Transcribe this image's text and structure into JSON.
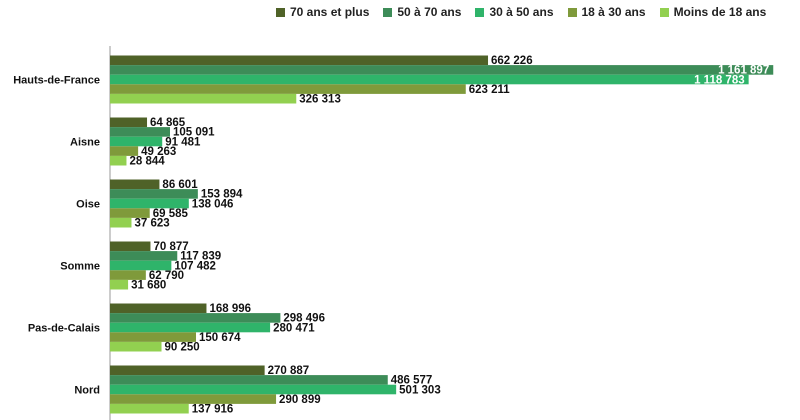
{
  "chart_data": {
    "type": "bar",
    "orientation": "horizontal",
    "categories": [
      "Hauts-de-France",
      "Aisne",
      "Oise",
      "Somme",
      "Pas-de-Calais",
      "Nord"
    ],
    "series": [
      {
        "name": "70 ans et plus",
        "color": "#4f6228",
        "values": [
          662226,
          64865,
          86601,
          70877,
          168996,
          270887
        ],
        "labels": [
          "662 226",
          "64 865",
          "86 601",
          "70 877",
          "168 996",
          "270 887"
        ]
      },
      {
        "name": "50 à 70 ans",
        "color": "#3d8c58",
        "values": [
          1161897,
          105091,
          153894,
          117839,
          298496,
          486577
        ],
        "labels": [
          "1 161 897",
          "105 091",
          "153 894",
          "117 839",
          "298 496",
          "486 577"
        ]
      },
      {
        "name": "30 à 50 ans",
        "color": "#2fb46a",
        "values": [
          1118783,
          91481,
          138046,
          107482,
          280471,
          501303
        ],
        "labels": [
          "1 118 783",
          "91 481",
          "138 046",
          "107 482",
          "280 471",
          "501 303"
        ]
      },
      {
        "name": "18 à 30 ans",
        "color": "#7f9a3b",
        "values": [
          623211,
          49263,
          69585,
          62790,
          150674,
          290899
        ],
        "labels": [
          "623 211",
          "49 263",
          "69 585",
          "62 790",
          "150 674",
          "290 899"
        ]
      },
      {
        "name": "Moins de 18 ans",
        "color": "#92d050",
        "values": [
          326313,
          28844,
          37623,
          31680,
          90250,
          137916
        ],
        "labels": [
          "326 313",
          "28 844",
          "37 623",
          "31 680",
          "90 250",
          "137 916"
        ]
      }
    ],
    "xlim": [
      0,
      1200000
    ],
    "legend_position": "top",
    "grid": false,
    "title": "",
    "xlabel": "",
    "ylabel": ""
  }
}
